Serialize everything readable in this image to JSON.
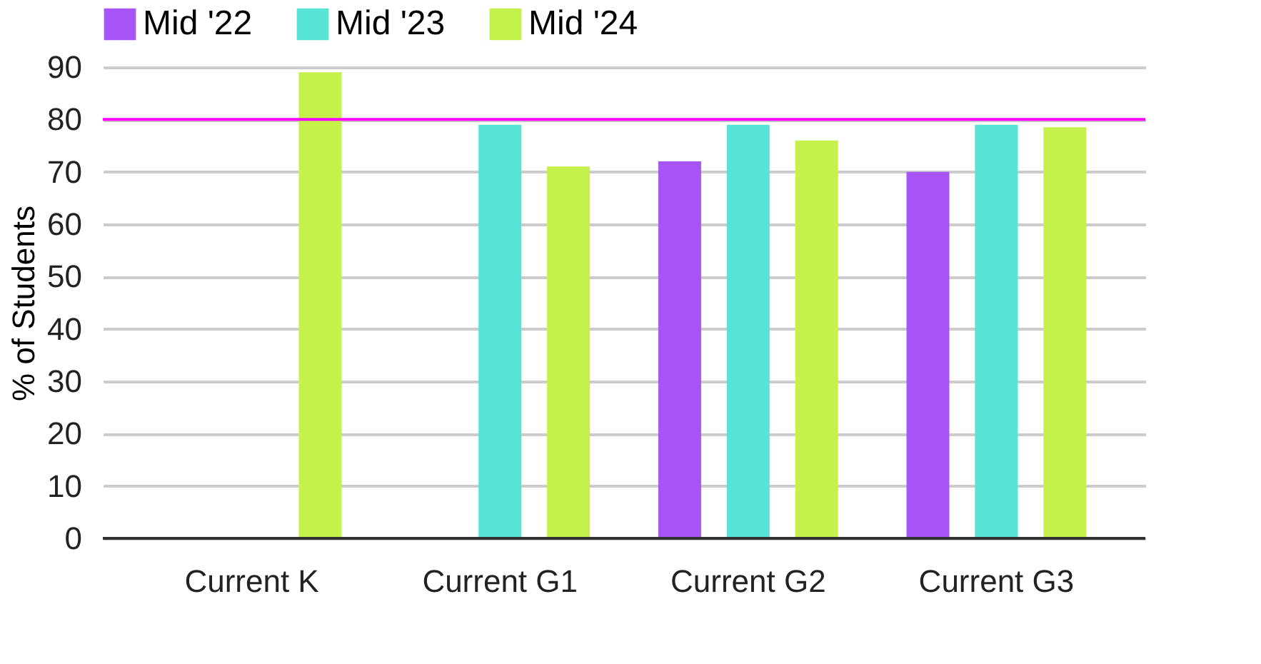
{
  "chart_data": {
    "type": "bar",
    "categories": [
      "Current K",
      "Current G1",
      "Current G2",
      "Current G3"
    ],
    "series": [
      {
        "name": "Mid '22",
        "color": "#a855f7",
        "values": [
          null,
          null,
          72,
          70
        ]
      },
      {
        "name": "Mid '23",
        "color": "#58e4d4",
        "values": [
          null,
          79,
          79,
          79
        ]
      },
      {
        "name": "Mid '24",
        "color": "#c4f24a",
        "values": [
          89,
          71,
          76,
          78.5
        ]
      }
    ],
    "ylabel": "% of Students",
    "ylim": [
      0,
      90
    ],
    "yticks": [
      0,
      10,
      20,
      30,
      40,
      50,
      60,
      70,
      80,
      90
    ],
    "grid": "y",
    "legend": "top",
    "ref_lines": [
      {
        "axis": "y",
        "value": 80,
        "color": "#ff00ff"
      }
    ]
  }
}
